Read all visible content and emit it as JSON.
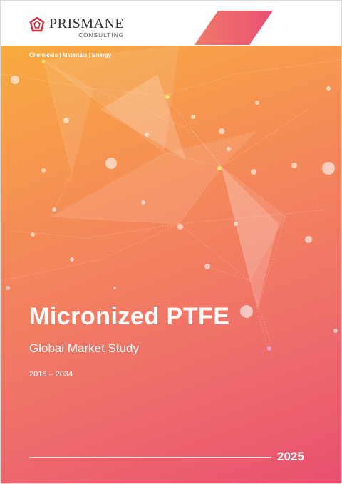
{
  "header": {
    "brand": "PRISMANE",
    "brand_sub": "CONSULTING",
    "tagline": "Chemicals | Materials | Energy"
  },
  "cover": {
    "title": "Micronized PTFE",
    "subtitle": "Global Market Study",
    "period": "2018 – 2034",
    "year": "2025"
  },
  "colors": {
    "gradient_top": "#f8b23a",
    "gradient_bottom": "#e9506f",
    "logo_red": "#d92b3a"
  }
}
